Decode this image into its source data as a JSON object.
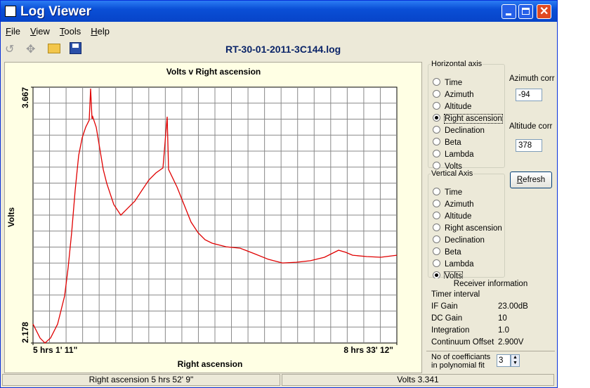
{
  "window": {
    "title": "Log Viewer"
  },
  "menu": [
    "File",
    "View",
    "Tools",
    "Help"
  ],
  "file_name": "RT-30-01-2011-3C144.log",
  "chart_data": {
    "type": "line",
    "title": "Volts v Right ascension",
    "x_label": "Right ascension",
    "y_label": "Volts",
    "xlim": [
      18071,
      30792
    ],
    "xticks": [
      {
        "value": 18071,
        "label": "5 hrs 1' 11\""
      },
      {
        "value": 30792,
        "label": "8 hrs 33' 12\""
      }
    ],
    "ylim": [
      2.178,
      3.667
    ],
    "yticks": [
      2.178,
      3.667
    ],
    "grid": true,
    "series": [
      {
        "name": "Volts",
        "color": "#e00000",
        "x": [
          18071,
          18317,
          18488,
          18685,
          18931,
          19176,
          19299,
          19422,
          19544,
          19667,
          19790,
          19913,
          20036,
          20085,
          20134,
          20158,
          20281,
          20404,
          20527,
          20650,
          20895,
          21141,
          21386,
          21632,
          21878,
          22123,
          22369,
          22614,
          22762,
          22811,
          23105,
          23351,
          23597,
          23842,
          24088,
          24333,
          24824,
          25316,
          25807,
          26298,
          26789,
          27280,
          27771,
          28263,
          28754,
          28999,
          29245,
          29736,
          30227,
          30792
        ],
        "values": [
          2.288,
          2.207,
          2.178,
          2.207,
          2.288,
          2.452,
          2.616,
          2.82,
          3.066,
          3.27,
          3.372,
          3.434,
          3.475,
          3.659,
          3.483,
          3.495,
          3.434,
          3.311,
          3.188,
          3.107,
          2.984,
          2.922,
          2.963,
          3.004,
          3.066,
          3.127,
          3.168,
          3.197,
          3.495,
          3.188,
          3.086,
          2.984,
          2.882,
          2.82,
          2.779,
          2.759,
          2.738,
          2.73,
          2.698,
          2.665,
          2.644,
          2.648,
          2.657,
          2.677,
          2.718,
          2.706,
          2.689,
          2.681,
          2.677,
          2.689
        ]
      }
    ]
  },
  "horizontal_axis": {
    "label": "Horizontal axis",
    "options": [
      "Time",
      "Azimuth",
      "Altitude",
      "Right ascension",
      "Declination",
      "Beta",
      "Lambda",
      "Volts"
    ],
    "selected": 3
  },
  "vertical_axis": {
    "label": "Vertical Axis",
    "options": [
      "Time",
      "Azimuth",
      "Altitude",
      "Right ascension",
      "Declination",
      "Beta",
      "Lambda",
      "Volts"
    ],
    "selected": 7
  },
  "azimuth_corr": {
    "label": "Azimuth corr",
    "value": "-94"
  },
  "altitude_corr": {
    "label": "Altitude corr",
    "value": "378"
  },
  "refresh": "Refresh",
  "receiver": {
    "title": "Receiver information",
    "rows": [
      {
        "label": "Timer interval"
      },
      {
        "label": "IF Gain",
        "value": "23.00dB"
      },
      {
        "label": "DC Gain",
        "value": "10"
      },
      {
        "label": "Integration",
        "value": "1.0"
      },
      {
        "label": "Continuum Offset",
        "value": "2.900V"
      }
    ]
  },
  "coefficients": {
    "label": "No of coefficiants in polynomial fit",
    "value": "3"
  },
  "status": [
    "Right ascension 5 hrs 52' 9\"",
    "Volts 3.341"
  ]
}
